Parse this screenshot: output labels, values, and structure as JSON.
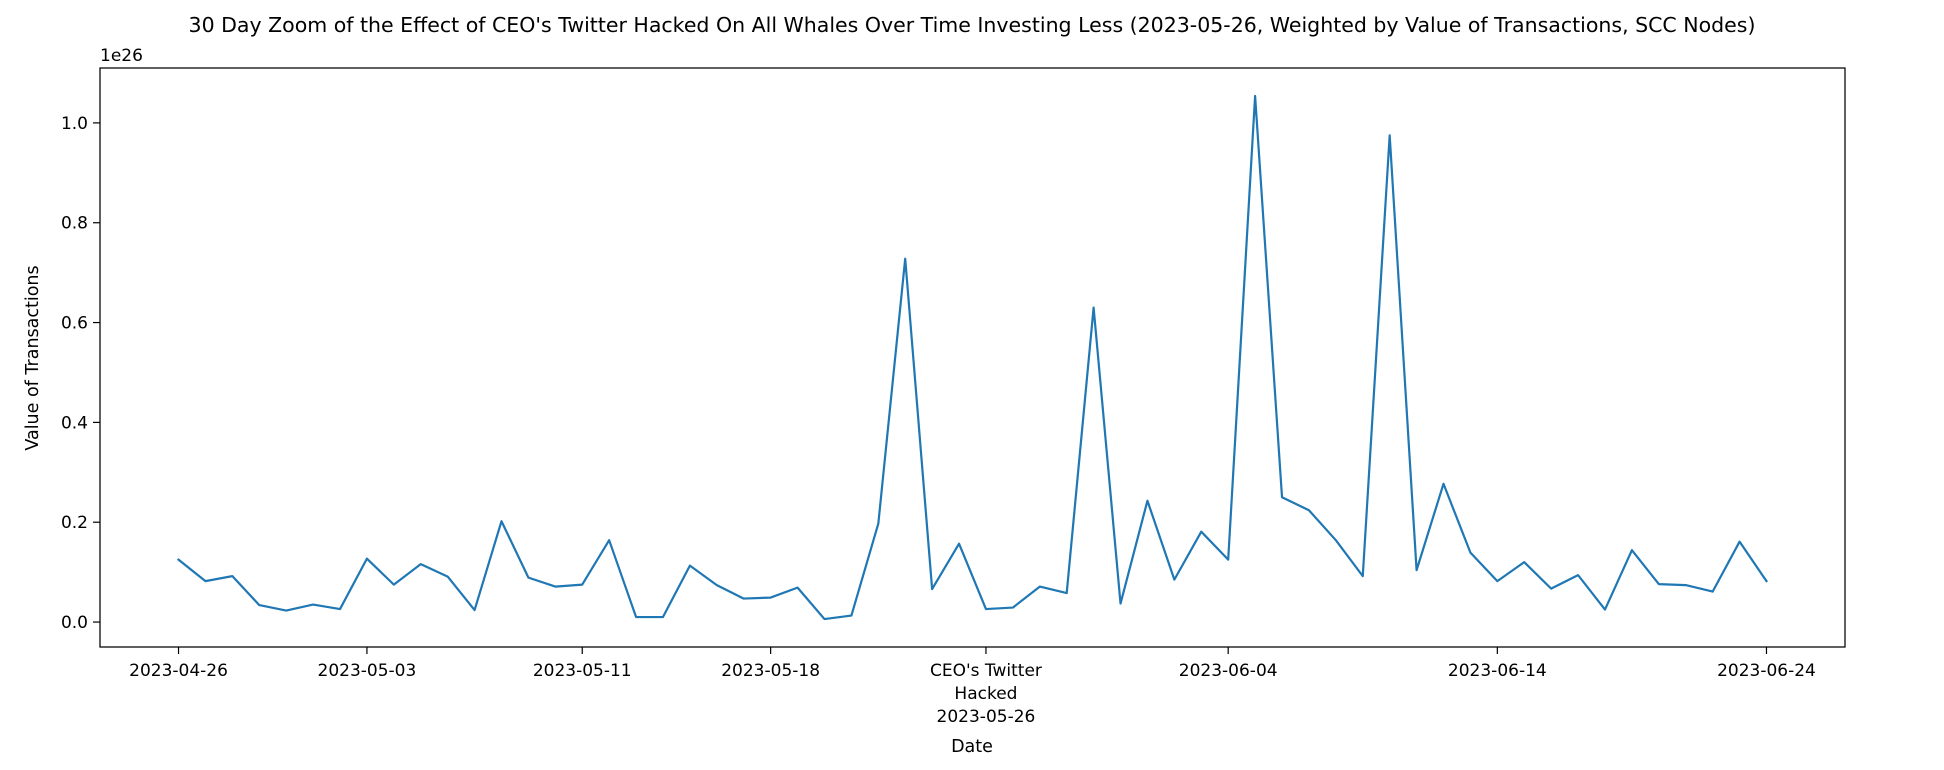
{
  "chart_data": {
    "type": "line",
    "title": "30 Day Zoom of the Effect of CEO's Twitter Hacked On All Whales Over Time Investing Less (2023-05-26, Weighted by Value of Transactions, SCC Nodes)",
    "xlabel": "Date",
    "ylabel": "Value of Transactions",
    "y_offset_label": "1e26",
    "y_scale_exponent": 26,
    "x_start": "2023-04-26",
    "x_end": "2023-06-24",
    "ylim": [
      -0.05,
      1.11
    ],
    "grid": false,
    "x_ticks": [
      {
        "date": "2023-04-26",
        "label": "2023-04-26"
      },
      {
        "date": "2023-05-03",
        "label": "2023-05-03"
      },
      {
        "date": "2023-05-11",
        "label": "2023-05-11"
      },
      {
        "date": "2023-05-18",
        "label": "2023-05-18"
      },
      {
        "date": "2023-05-26",
        "label": "CEO's Twitter\nHacked\n2023-05-26"
      },
      {
        "date": "2023-06-04",
        "label": "2023-06-04"
      },
      {
        "date": "2023-06-14",
        "label": "2023-06-14"
      },
      {
        "date": "2023-06-24",
        "label": "2023-06-24"
      }
    ],
    "y_ticks": [
      {
        "value": 0.0,
        "label": "0.0"
      },
      {
        "value": 0.2,
        "label": "0.2"
      },
      {
        "value": 0.4,
        "label": "0.4"
      },
      {
        "value": 0.6,
        "label": "0.6"
      },
      {
        "value": 0.8,
        "label": "0.8"
      },
      {
        "value": 1.0,
        "label": "1.0"
      }
    ],
    "series": [
      {
        "color": "#1f77b4",
        "x": [
          "2023-04-26",
          "2023-04-27",
          "2023-04-28",
          "2023-04-29",
          "2023-04-30",
          "2023-05-01",
          "2023-05-02",
          "2023-05-03",
          "2023-05-04",
          "2023-05-05",
          "2023-05-06",
          "2023-05-07",
          "2023-05-08",
          "2023-05-09",
          "2023-05-10",
          "2023-05-11",
          "2023-05-12",
          "2023-05-13",
          "2023-05-14",
          "2023-05-15",
          "2023-05-16",
          "2023-05-17",
          "2023-05-18",
          "2023-05-19",
          "2023-05-20",
          "2023-05-21",
          "2023-05-22",
          "2023-05-23",
          "2023-05-24",
          "2023-05-25",
          "2023-05-26",
          "2023-05-27",
          "2023-05-28",
          "2023-05-29",
          "2023-05-30",
          "2023-05-31",
          "2023-06-01",
          "2023-06-02",
          "2023-06-03",
          "2023-06-04",
          "2023-06-05",
          "2023-06-06",
          "2023-06-07",
          "2023-06-08",
          "2023-06-09",
          "2023-06-10",
          "2023-06-11",
          "2023-06-12",
          "2023-06-13",
          "2023-06-14",
          "2023-06-15",
          "2023-06-16",
          "2023-06-17",
          "2023-06-18",
          "2023-06-19",
          "2023-06-20",
          "2023-06-21",
          "2023-06-22",
          "2023-06-23",
          "2023-06-24"
        ],
        "values": [
          0.125,
          0.082,
          0.092,
          0.034,
          0.023,
          0.035,
          0.026,
          0.127,
          0.075,
          0.116,
          0.091,
          0.024,
          0.202,
          0.089,
          0.071,
          0.075,
          0.164,
          0.01,
          0.01,
          0.113,
          0.074,
          0.047,
          0.049,
          0.069,
          0.006,
          0.013,
          0.197,
          0.728,
          0.066,
          0.157,
          0.026,
          0.029,
          0.071,
          0.058,
          0.63,
          0.037,
          0.243,
          0.085,
          0.181,
          0.125,
          1.054,
          0.25,
          0.224,
          0.164,
          0.092,
          0.975,
          0.104,
          0.277,
          0.139,
          0.082,
          0.12,
          0.067,
          0.094,
          0.025,
          0.144,
          0.076,
          0.074,
          0.061,
          0.161,
          0.082
        ]
      }
    ]
  }
}
